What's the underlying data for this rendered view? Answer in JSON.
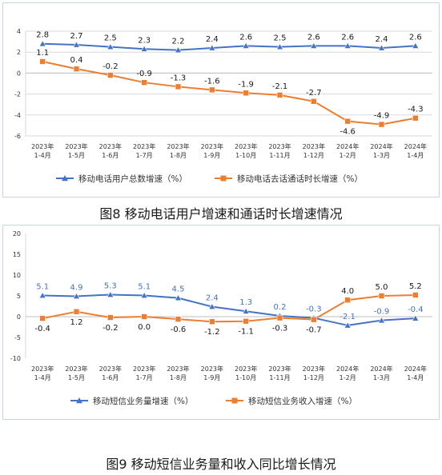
{
  "charts": [
    {
      "caption": "图8 移动电话用户增速和通话时长增速情况",
      "chart_data": {
        "type": "line",
        "categories": [
          [
            "2023年",
            "1-4月"
          ],
          [
            "2023年",
            "1-5月"
          ],
          [
            "2023年",
            "1-6月"
          ],
          [
            "2023年",
            "1-7月"
          ],
          [
            "2023年",
            "1-8月"
          ],
          [
            "2023年",
            "1-9月"
          ],
          [
            "2023年",
            "1-10月"
          ],
          [
            "2023年",
            "1-11月"
          ],
          [
            "2023年",
            "1-12月"
          ],
          [
            "2024年",
            "1-2月"
          ],
          [
            "2024年",
            "1-3月"
          ],
          [
            "2024年",
            "1-4月"
          ]
        ],
        "ylim": [
          -6,
          4
        ],
        "yticks": [
          -6,
          -4,
          -2,
          0,
          2,
          4
        ],
        "grid": true,
        "legend_position": "bottom",
        "series": [
          {
            "name": "移动电话用户总数增速（%）",
            "color": "#4472c4",
            "marker": "triangle",
            "values": [
              2.8,
              2.7,
              2.5,
              2.3,
              2.2,
              2.4,
              2.6,
              2.5,
              2.6,
              2.6,
              2.4,
              2.6
            ],
            "labels": [
              "2.8",
              "2.7",
              "2.5",
              "2.3",
              "2.2",
              "2.4",
              "2.6",
              "2.5",
              "2.6",
              "2.6",
              "2.4",
              "2.6"
            ],
            "label_pos": "above",
            "label_color": "#1a1a1a"
          },
          {
            "name": "移动电话去话通话时长增速（%）",
            "color": "#ed7d31",
            "marker": "square",
            "values": [
              1.1,
              0.4,
              -0.2,
              -0.9,
              -1.3,
              -1.6,
              -1.9,
              -2.1,
              -2.7,
              -4.6,
              -4.9,
              -4.3
            ],
            "labels": [
              "1.1",
              "0.4",
              "-0.2",
              "-0.9",
              "-1.3",
              "-1.6",
              "-1.9",
              "-2.1",
              "-2.7",
              "-4.6",
              "-4.9",
              "-4.3"
            ],
            "label_pos": [
              "above",
              "above",
              "above",
              "above",
              "above",
              "above",
              "above",
              "above",
              "above",
              "below",
              "above",
              "above"
            ],
            "label_color": "#1a1a1a"
          }
        ]
      }
    },
    {
      "caption": "图9 移动短信业务量和收入同比增长情况",
      "chart_data": {
        "type": "line",
        "categories": [
          [
            "2023年",
            "1-4月"
          ],
          [
            "2023年",
            "1-5月"
          ],
          [
            "2023年",
            "1-6月"
          ],
          [
            "2023年",
            "1-7月"
          ],
          [
            "2023年",
            "1-8月"
          ],
          [
            "2023年",
            "1-9月"
          ],
          [
            "2023年",
            "1-10月"
          ],
          [
            "2023年",
            "1-11月"
          ],
          [
            "2023年",
            "1-12月"
          ],
          [
            "2024年",
            "1-2月"
          ],
          [
            "2024年",
            "1-3月"
          ],
          [
            "2024年",
            "1-4月"
          ]
        ],
        "ylim": [
          -10,
          20
        ],
        "yticks": [
          -10,
          -5,
          0,
          5,
          10,
          15,
          20
        ],
        "grid": false,
        "legend_position": "bottom",
        "series": [
          {
            "name": "移动短信业务量增速（%）",
            "color": "#4472c4",
            "marker": "triangle",
            "values": [
              5.1,
              4.9,
              5.3,
              5.1,
              4.5,
              2.4,
              1.3,
              0.2,
              -0.3,
              -2.1,
              -0.9,
              -0.4
            ],
            "labels": [
              "5.1",
              "4.9",
              "5.3",
              "5.1",
              "4.5",
              "2.4",
              "1.3",
              "0.2",
              "-0.3",
              "-2.1",
              "-0.9",
              "-0.4"
            ],
            "label_pos": "above",
            "label_color": "#4472c4"
          },
          {
            "name": "移动短信业务收入增速（%）",
            "color": "#ed7d31",
            "marker": "square",
            "values": [
              -0.4,
              1.2,
              -0.2,
              0.0,
              -0.6,
              -1.2,
              -1.1,
              -0.3,
              -0.7,
              4.0,
              5.0,
              5.2
            ],
            "labels": [
              "-0.4",
              "1.2",
              "-0.2",
              "0.0",
              "-0.6",
              "-1.2",
              "-1.1",
              "-0.3",
              "-0.7",
              "4.0",
              "5.0",
              "5.2"
            ],
            "label_pos": [
              "below",
              "below",
              "below",
              "below",
              "below",
              "below",
              "below",
              "below",
              "below",
              "above",
              "above",
              "above"
            ],
            "label_color": "#1a1a1a"
          }
        ]
      }
    }
  ]
}
